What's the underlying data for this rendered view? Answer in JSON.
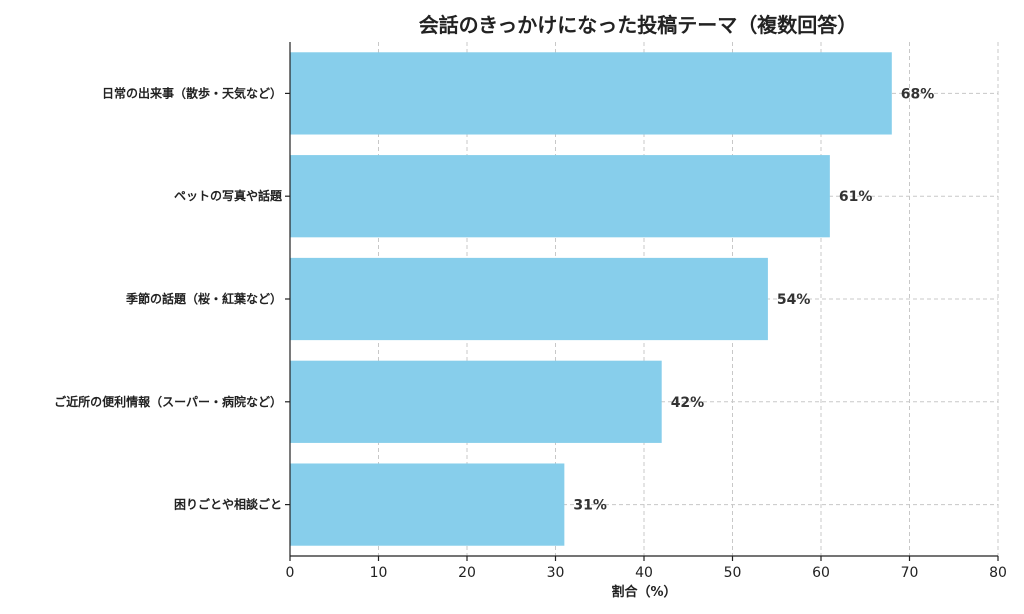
{
  "chart_data": {
    "type": "bar",
    "orientation": "horizontal",
    "title": "会話のきっかけになった投稿テーマ（複数回答）",
    "xlabel": "割合（%）",
    "ylabel": "",
    "categories": [
      "日常の出来事（散歩・天気など）",
      "ペットの写真や話題",
      "季節の話題（桜・紅葉など）",
      "ご近所の便利情報（スーパー・病院など）",
      "困りごとや相談ごと"
    ],
    "values": [
      68,
      61,
      54,
      42,
      31
    ],
    "value_labels": [
      "68%",
      "61%",
      "54%",
      "42%",
      "31%"
    ],
    "xlim": [
      0,
      80
    ],
    "xticks": [
      "0",
      "10",
      "20",
      "30",
      "40",
      "50",
      "60",
      "70",
      "80"
    ],
    "grid": true,
    "bar_color": "#87ceeb"
  }
}
